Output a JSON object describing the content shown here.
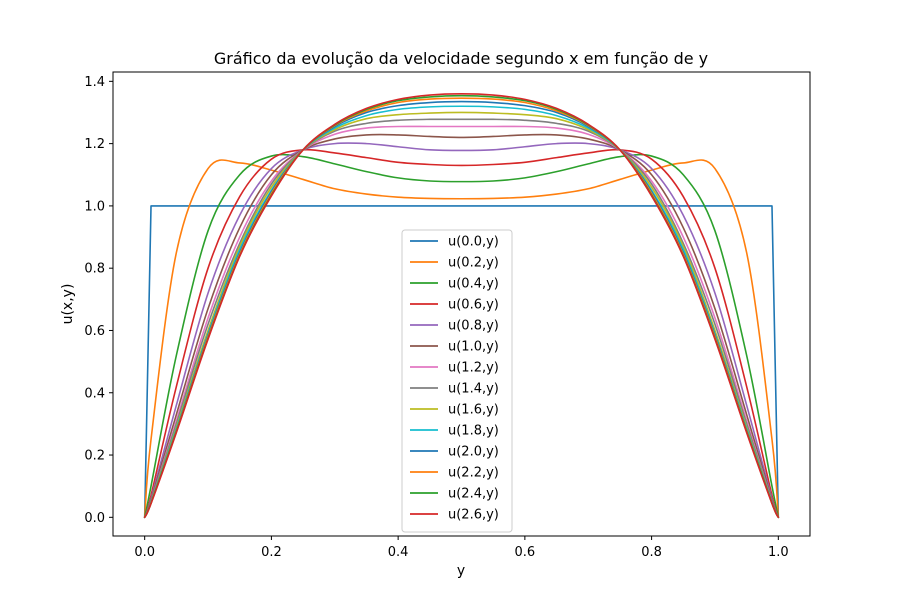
{
  "chart_data": {
    "type": "line",
    "title": "Gráfico da evolução da velocidade segundo x em função de y",
    "xlabel": "y",
    "ylabel": "u(x,y)",
    "xlim": [
      -0.05,
      1.05
    ],
    "ylim": [
      -0.06,
      1.43
    ],
    "xticks": [
      0.0,
      0.2,
      0.4,
      0.6,
      0.8,
      1.0
    ],
    "xtick_labels": [
      "0.0",
      "0.2",
      "0.4",
      "0.6",
      "0.8",
      "1.0"
    ],
    "yticks": [
      0.0,
      0.2,
      0.4,
      0.6,
      0.8,
      1.0,
      1.2,
      1.4
    ],
    "ytick_labels": [
      "0.0",
      "0.2",
      "0.4",
      "0.6",
      "0.8",
      "1.0",
      "1.2",
      "1.4"
    ],
    "grid": false,
    "legend_position": "lower-center",
    "x": [
      0,
      0.01,
      0.05,
      0.1,
      0.15,
      0.2,
      0.25,
      0.3,
      0.35,
      0.4,
      0.45,
      0.5,
      0.55,
      0.6,
      0.65,
      0.7,
      0.75,
      0.8,
      0.85,
      0.9,
      0.95,
      0.99,
      1.0
    ],
    "series": [
      {
        "name": "u(0.0,y)",
        "color": "#1f77b4",
        "values": [
          0,
          1.0,
          1.0,
          1.0,
          1.0,
          1.0,
          1.0,
          1.0,
          1.0,
          1.0,
          1.0,
          1.0,
          1.0,
          1.0,
          1.0,
          1.0,
          1.0,
          1.0,
          1.0,
          1.0,
          1.0,
          1.0,
          0
        ]
      },
      {
        "name": "u(0.2,y)",
        "color": "#ff7f0e",
        "values": [
          0,
          0.25,
          0.85,
          1.12,
          1.138,
          1.115,
          1.085,
          1.055,
          1.038,
          1.028,
          1.024,
          1.023,
          1.024,
          1.028,
          1.038,
          1.055,
          1.085,
          1.115,
          1.138,
          1.12,
          0.85,
          0.25,
          0
        ]
      },
      {
        "name": "u(0.4,y)",
        "color": "#2ca02c",
        "values": [
          0,
          0.1,
          0.52,
          0.92,
          1.1,
          1.16,
          1.158,
          1.135,
          1.11,
          1.09,
          1.08,
          1.078,
          1.08,
          1.09,
          1.11,
          1.135,
          1.158,
          1.16,
          1.1,
          0.92,
          0.52,
          0.1,
          0
        ]
      },
      {
        "name": "u(0.6,y)",
        "color": "#d62728",
        "values": [
          0,
          0.07,
          0.42,
          0.8,
          1.03,
          1.15,
          1.18,
          1.17,
          1.155,
          1.14,
          1.133,
          1.13,
          1.133,
          1.14,
          1.155,
          1.17,
          1.18,
          1.15,
          1.03,
          0.8,
          0.42,
          0.07,
          0
        ]
      },
      {
        "name": "u(0.8,y)",
        "color": "#9467bd",
        "values": [
          0,
          0.06,
          0.36,
          0.72,
          0.97,
          1.12,
          1.18,
          1.2,
          1.2,
          1.19,
          1.18,
          1.178,
          1.18,
          1.19,
          1.2,
          1.2,
          1.18,
          1.12,
          0.97,
          0.72,
          0.36,
          0.06,
          0
        ]
      },
      {
        "name": "u(1.0,y)",
        "color": "#8c564b",
        "values": [
          0,
          0.055,
          0.33,
          0.67,
          0.93,
          1.1,
          1.18,
          1.215,
          1.228,
          1.228,
          1.223,
          1.22,
          1.223,
          1.228,
          1.228,
          1.215,
          1.18,
          1.1,
          0.93,
          0.67,
          0.33,
          0.055,
          0
        ]
      },
      {
        "name": "u(1.2,y)",
        "color": "#e377c2",
        "values": [
          0,
          0.05,
          0.31,
          0.64,
          0.9,
          1.08,
          1.18,
          1.23,
          1.25,
          1.255,
          1.255,
          1.255,
          1.255,
          1.255,
          1.25,
          1.23,
          1.18,
          1.08,
          0.9,
          0.64,
          0.31,
          0.05,
          0
        ]
      },
      {
        "name": "u(1.4,y)",
        "color": "#7f7f7f",
        "values": [
          0,
          0.05,
          0.3,
          0.62,
          0.88,
          1.07,
          1.18,
          1.24,
          1.265,
          1.275,
          1.278,
          1.278,
          1.278,
          1.275,
          1.265,
          1.24,
          1.18,
          1.07,
          0.88,
          0.62,
          0.3,
          0.05,
          0
        ]
      },
      {
        "name": "u(1.6,y)",
        "color": "#bcbd22",
        "values": [
          0,
          0.048,
          0.29,
          0.6,
          0.87,
          1.06,
          1.18,
          1.245,
          1.28,
          1.293,
          1.298,
          1.3,
          1.298,
          1.293,
          1.28,
          1.245,
          1.18,
          1.06,
          0.87,
          0.6,
          0.29,
          0.048,
          0
        ]
      },
      {
        "name": "u(1.8,y)",
        "color": "#17becf",
        "values": [
          0,
          0.047,
          0.285,
          0.59,
          0.86,
          1.05,
          1.18,
          1.25,
          1.29,
          1.31,
          1.318,
          1.32,
          1.318,
          1.31,
          1.29,
          1.25,
          1.18,
          1.05,
          0.86,
          0.59,
          0.285,
          0.047,
          0
        ]
      },
      {
        "name": "u(2.0,y)",
        "color": "#1f77b4",
        "values": [
          0,
          0.046,
          0.28,
          0.585,
          0.85,
          1.045,
          1.18,
          1.255,
          1.3,
          1.322,
          1.332,
          1.335,
          1.332,
          1.322,
          1.3,
          1.255,
          1.18,
          1.045,
          0.85,
          0.585,
          0.28,
          0.046,
          0
        ]
      },
      {
        "name": "u(2.2,y)",
        "color": "#ff7f0e",
        "values": [
          0,
          0.045,
          0.278,
          0.58,
          0.845,
          1.04,
          1.18,
          1.258,
          1.305,
          1.332,
          1.343,
          1.346,
          1.343,
          1.332,
          1.305,
          1.258,
          1.18,
          1.04,
          0.845,
          0.58,
          0.278,
          0.045,
          0
        ]
      },
      {
        "name": "u(2.4,y)",
        "color": "#2ca02c",
        "values": [
          0,
          0.045,
          0.275,
          0.575,
          0.84,
          1.035,
          1.18,
          1.26,
          1.31,
          1.338,
          1.35,
          1.354,
          1.35,
          1.338,
          1.31,
          1.26,
          1.18,
          1.035,
          0.84,
          0.575,
          0.275,
          0.045,
          0
        ]
      },
      {
        "name": "u(2.6,y)",
        "color": "#d62728",
        "values": [
          0,
          0.044,
          0.272,
          0.572,
          0.838,
          1.032,
          1.18,
          1.262,
          1.313,
          1.342,
          1.356,
          1.36,
          1.356,
          1.342,
          1.313,
          1.262,
          1.18,
          1.032,
          0.838,
          0.572,
          0.272,
          0.044,
          0
        ]
      }
    ]
  }
}
